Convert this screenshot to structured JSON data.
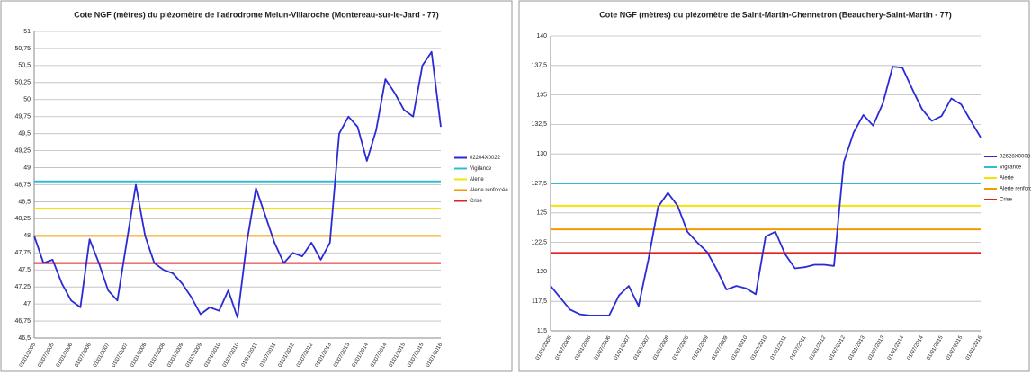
{
  "chart_data": [
    {
      "type": "line",
      "title": "Cote NGF (mètres) du piézomètre de l'aérodrome Melun-Villaroche (Montereau-sur-le-Jard - 77)",
      "categories": [
        "01/01/2005",
        null,
        "01/07/2005",
        null,
        "01/01/2006",
        null,
        "01/07/2006",
        null,
        "01/01/2007",
        null,
        "01/07/2007",
        null,
        "01/01/2008",
        null,
        "01/07/2008",
        null,
        "01/01/2009",
        null,
        "01/07/2009",
        null,
        "01/01/2010",
        null,
        "01/07/2010",
        null,
        "01/01/2011",
        null,
        "01/07/2011",
        null,
        "01/01/2012",
        null,
        "01/07/2012",
        null,
        "01/01/2013",
        null,
        "01/07/2013",
        null,
        "01/01/2014",
        null,
        "01/07/2014",
        null,
        "01/01/2015",
        null,
        "01/07/2015",
        null,
        "01/01/2016"
      ],
      "series": [
        {
          "name": "02204X0022",
          "color": "#2b2bd6",
          "values": [
            48.0,
            47.6,
            47.65,
            47.3,
            47.05,
            46.95,
            47.95,
            47.6,
            47.2,
            47.05,
            47.9,
            48.75,
            48.0,
            47.6,
            47.5,
            47.45,
            47.3,
            47.1,
            46.85,
            46.95,
            46.9,
            47.2,
            46.8,
            47.9,
            48.7,
            48.3,
            47.9,
            47.6,
            47.75,
            47.7,
            47.9,
            47.65,
            47.9,
            49.5,
            49.75,
            49.6,
            49.1,
            49.55,
            50.3,
            50.1,
            49.85,
            49.75,
            50.5,
            50.7,
            49.6
          ]
        }
      ],
      "thresholds": [
        {
          "name": "Vigilance",
          "color": "#33bbd6",
          "value": 48.8
        },
        {
          "name": "Alerte",
          "color": "#f2e600",
          "value": 48.4
        },
        {
          "name": "Alerte renforcée",
          "color": "#f29a00",
          "value": 48.0
        },
        {
          "name": "Crise",
          "color": "#e02020",
          "value": 47.6
        }
      ],
      "ylim": [
        46.5,
        51
      ],
      "yticks": [
        {
          "value": 46.5,
          "label": "46,5"
        },
        {
          "value": 46.75,
          "label": "46,75"
        },
        47,
        {
          "value": 47.25,
          "label": "47,25"
        },
        {
          "value": 47.5,
          "label": "47,5"
        },
        {
          "value": 47.75,
          "label": "47,75"
        },
        48,
        {
          "value": 48.25,
          "label": "48,25"
        },
        {
          "value": 48.5,
          "label": "48,5"
        },
        {
          "value": 48.75,
          "label": "48,75"
        },
        49,
        {
          "value": 49.25,
          "label": "49,25"
        },
        {
          "value": 49.5,
          "label": "49,5"
        },
        {
          "value": 49.75,
          "label": "49,75"
        },
        50,
        {
          "value": 50.25,
          "label": "50,25"
        },
        {
          "value": 50.5,
          "label": "50,5"
        },
        {
          "value": 50.75,
          "label": "50,75"
        },
        51
      ],
      "grid": true,
      "legend": "right"
    },
    {
      "type": "line",
      "title": "Cote NGF (mètres) du piézomètre de Saint-Martin-Chennetron (Beauchery-Saint-Martin - 77)",
      "categories": [
        "01/01/2005",
        null,
        "01/07/2005",
        null,
        "01/01/2006",
        null,
        "01/07/2006",
        null,
        "01/01/2007",
        null,
        "01/07/2007",
        null,
        "01/01/2008",
        null,
        "01/07/2008",
        null,
        "01/01/2009",
        null,
        "01/07/2009",
        null,
        "01/01/2010",
        null,
        "01/07/2010",
        null,
        "01/01/2011",
        null,
        "01/07/2011",
        null,
        "01/01/2012",
        null,
        "01/07/2012",
        null,
        "01/01/2013",
        null,
        "01/07/2013",
        null,
        "01/01/2014",
        null,
        "01/07/2014",
        null,
        "01/01/2015",
        null,
        "01/07/2015",
        null,
        "01/01/2016"
      ],
      "series": [
        {
          "name": "02628X0008",
          "color": "#2b2bd6",
          "values": [
            118.8,
            117.8,
            116.8,
            116.4,
            116.3,
            116.3,
            116.3,
            118.0,
            118.8,
            117.1,
            121.0,
            125.5,
            126.7,
            125.6,
            123.4,
            122.5,
            121.7,
            120.2,
            118.5,
            118.8,
            118.6,
            118.1,
            123.0,
            123.4,
            121.5,
            120.3,
            120.4,
            120.6,
            120.6,
            120.5,
            129.3,
            131.8,
            133.3,
            132.4,
            134.3,
            137.4,
            137.3,
            135.5,
            133.8,
            132.8,
            133.2,
            134.7,
            134.2,
            132.8,
            131.4
          ]
        }
      ],
      "thresholds": [
        {
          "name": "Vigilance",
          "color": "#33bbd6",
          "value": 127.5
        },
        {
          "name": "Alerte",
          "color": "#f2e600",
          "value": 125.6
        },
        {
          "name": "Alerte renforcée",
          "color": "#f29a00",
          "value": 123.6
        },
        {
          "name": "Crise",
          "color": "#e02020",
          "value": 121.6
        }
      ],
      "ylim": [
        115,
        140
      ],
      "yticks": [
        115,
        {
          "value": 117.5,
          "label": "117,5"
        },
        120,
        {
          "value": 122.5,
          "label": "122,5"
        },
        125,
        {
          "value": 127.5,
          "label": "127,5"
        },
        130,
        {
          "value": 132.5,
          "label": "132,5"
        },
        135,
        {
          "value": 137.5,
          "label": "137,5"
        },
        140
      ],
      "grid": true,
      "legend": "right"
    }
  ]
}
